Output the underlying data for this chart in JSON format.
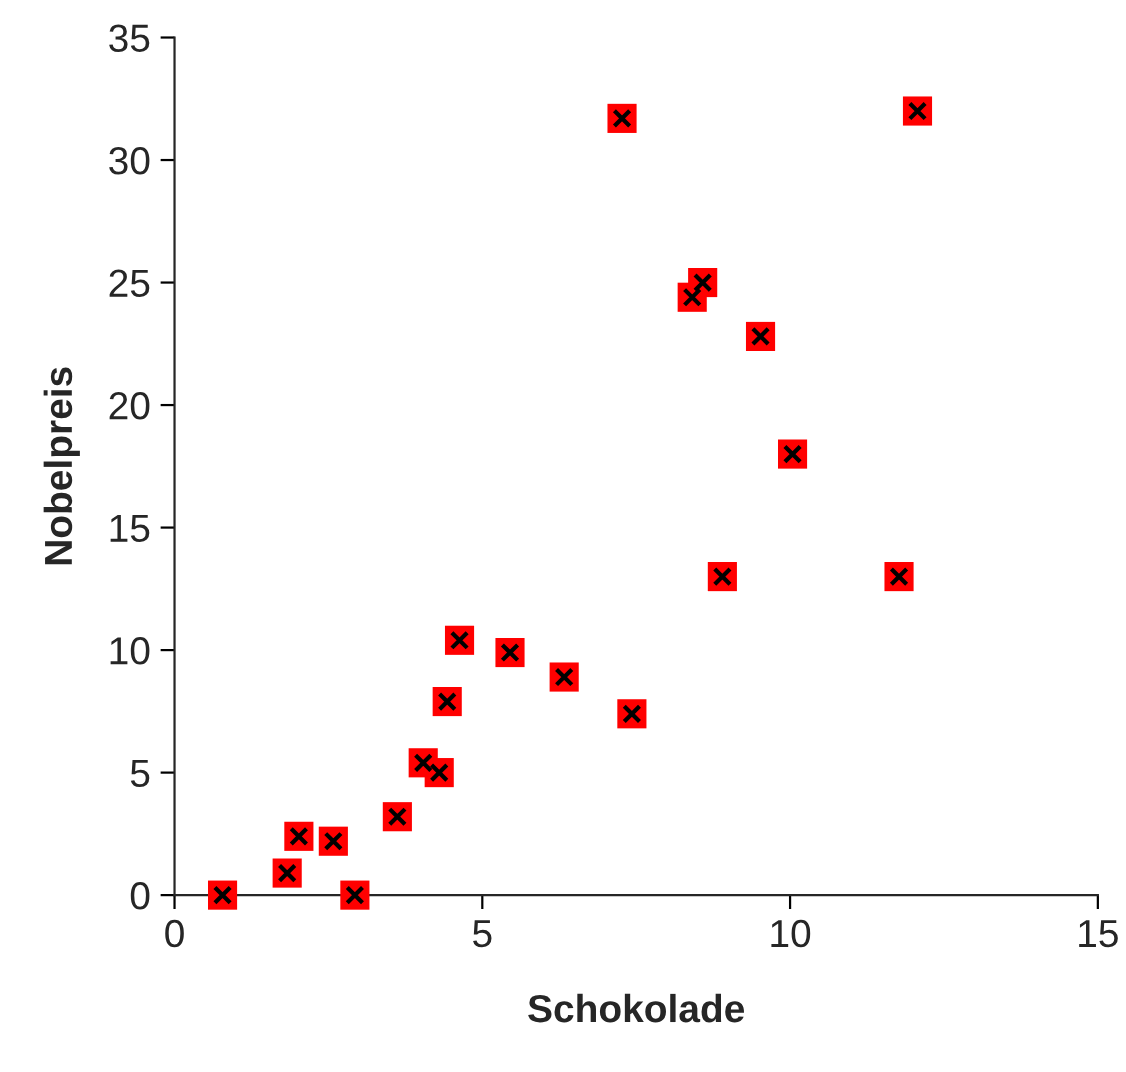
{
  "chart_data": {
    "type": "scatter",
    "xlabel": "Schokolade",
    "ylabel": "Nobelpreis",
    "x": [
      0.78,
      1.83,
      2.02,
      2.58,
      2.93,
      3.62,
      4.04,
      4.3,
      4.43,
      4.63,
      5.45,
      6.33,
      7.43,
      7.27,
      8.41,
      8.58,
      8.9,
      9.52,
      10.04,
      11.77,
      12.07
    ],
    "series": [
      {
        "color": "#ff0000",
        "values": [
          0,
          0.9,
          2.4,
          2.2,
          0,
          3.2,
          5.4,
          5.0,
          7.9,
          10.4,
          9.9,
          8.9,
          7.4,
          31.7,
          24.4,
          25.0,
          13.0,
          22.8,
          18.0,
          13.0,
          32.0
        ]
      }
    ],
    "xlim": [
      0,
      15
    ],
    "xticks": [
      0,
      5,
      10,
      15
    ],
    "ylim": [
      0,
      35
    ],
    "yticks": [
      0,
      5,
      10,
      15,
      20,
      25,
      30,
      35
    ],
    "marker": "square",
    "grid": false,
    "legend": false
  }
}
